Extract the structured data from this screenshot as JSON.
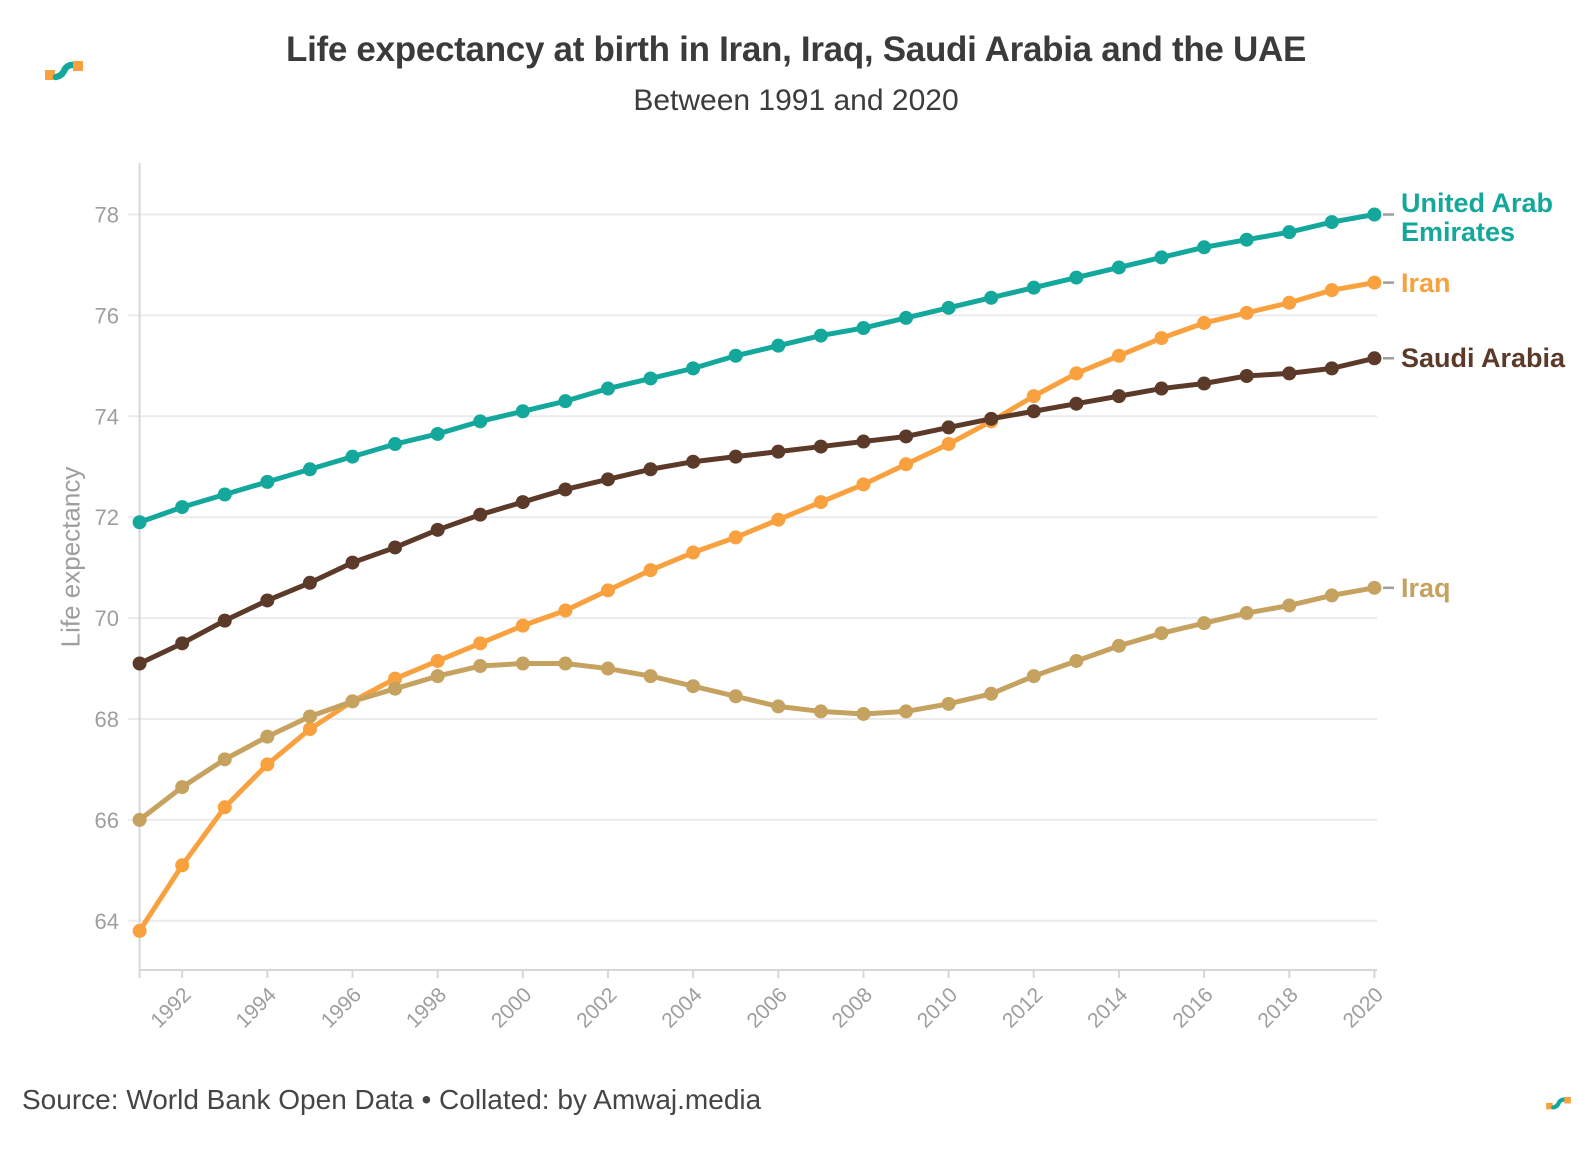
{
  "logo": {
    "orange": "#F9A13E",
    "teal": "#14A79B"
  },
  "footer": {
    "source": "Source: World Bank Open Data • Collated: by Amwaj.media"
  },
  "chart_data": {
    "type": "line",
    "title": "Life expectancy at birth in Iran, Iraq, Saudi Arabia and the UAE",
    "subtitle": "Between 1991 and 2020",
    "xlabel": "",
    "ylabel": "Life expectancy",
    "x": [
      1991,
      1992,
      1993,
      1994,
      1995,
      1996,
      1997,
      1998,
      1999,
      2000,
      2001,
      2002,
      2003,
      2004,
      2005,
      2006,
      2007,
      2008,
      2009,
      2010,
      2011,
      2012,
      2013,
      2014,
      2015,
      2016,
      2017,
      2018,
      2019,
      2020
    ],
    "x_tick_labels": [
      "1992",
      "1994",
      "1996",
      "1998",
      "2000",
      "2002",
      "2004",
      "2006",
      "2008",
      "2010",
      "2012",
      "2014",
      "2016",
      "2018",
      "2020"
    ],
    "y_ticks": [
      64,
      66,
      68,
      70,
      72,
      74,
      76,
      78
    ],
    "ylim": [
      63.0,
      79.0
    ],
    "grid": "horizontal",
    "legend_position": "right-end-labels",
    "style": {
      "grid_color": "#ebebeb",
      "axis_color": "#d7d7d7",
      "tick_text_color": "#9e9e9e",
      "label_dash_color": "#9e9e9e"
    },
    "series": [
      {
        "name": "United Arab Emirates",
        "color": "#14A79B",
        "values": [
          71.9,
          72.2,
          72.45,
          72.7,
          72.95,
          73.2,
          73.45,
          73.65,
          73.9,
          74.1,
          74.3,
          74.55,
          74.75,
          74.95,
          75.2,
          75.4,
          75.6,
          75.75,
          75.95,
          76.15,
          76.35,
          76.55,
          76.75,
          76.95,
          77.15,
          77.35,
          77.5,
          77.65,
          77.85,
          78.0
        ]
      },
      {
        "name": "Iran",
        "color": "#F9A13E",
        "values": [
          63.8,
          65.1,
          66.25,
          67.1,
          67.8,
          68.35,
          68.8,
          69.15,
          69.5,
          69.85,
          70.15,
          70.55,
          70.95,
          71.3,
          71.6,
          71.95,
          72.3,
          72.65,
          73.05,
          73.45,
          73.9,
          74.4,
          74.85,
          75.2,
          75.55,
          75.85,
          76.05,
          76.25,
          76.5,
          76.65
        ]
      },
      {
        "name": "Saudi Arabia",
        "color": "#5C3A29",
        "values": [
          69.1,
          69.5,
          69.95,
          70.35,
          70.7,
          71.1,
          71.4,
          71.75,
          72.05,
          72.3,
          72.55,
          72.75,
          72.95,
          73.1,
          73.2,
          73.3,
          73.4,
          73.5,
          73.6,
          73.78,
          73.95,
          74.1,
          74.25,
          74.4,
          74.55,
          74.65,
          74.8,
          74.85,
          74.95,
          75.15
        ]
      },
      {
        "name": "Iraq",
        "color": "#C6A261",
        "values": [
          66.0,
          66.65,
          67.2,
          67.65,
          68.05,
          68.35,
          68.6,
          68.85,
          69.05,
          69.1,
          69.1,
          69.0,
          68.85,
          68.65,
          68.45,
          68.25,
          68.15,
          68.1,
          68.15,
          68.3,
          68.5,
          68.85,
          69.15,
          69.45,
          69.7,
          69.9,
          70.1,
          70.25,
          70.45,
          70.6
        ]
      }
    ]
  }
}
